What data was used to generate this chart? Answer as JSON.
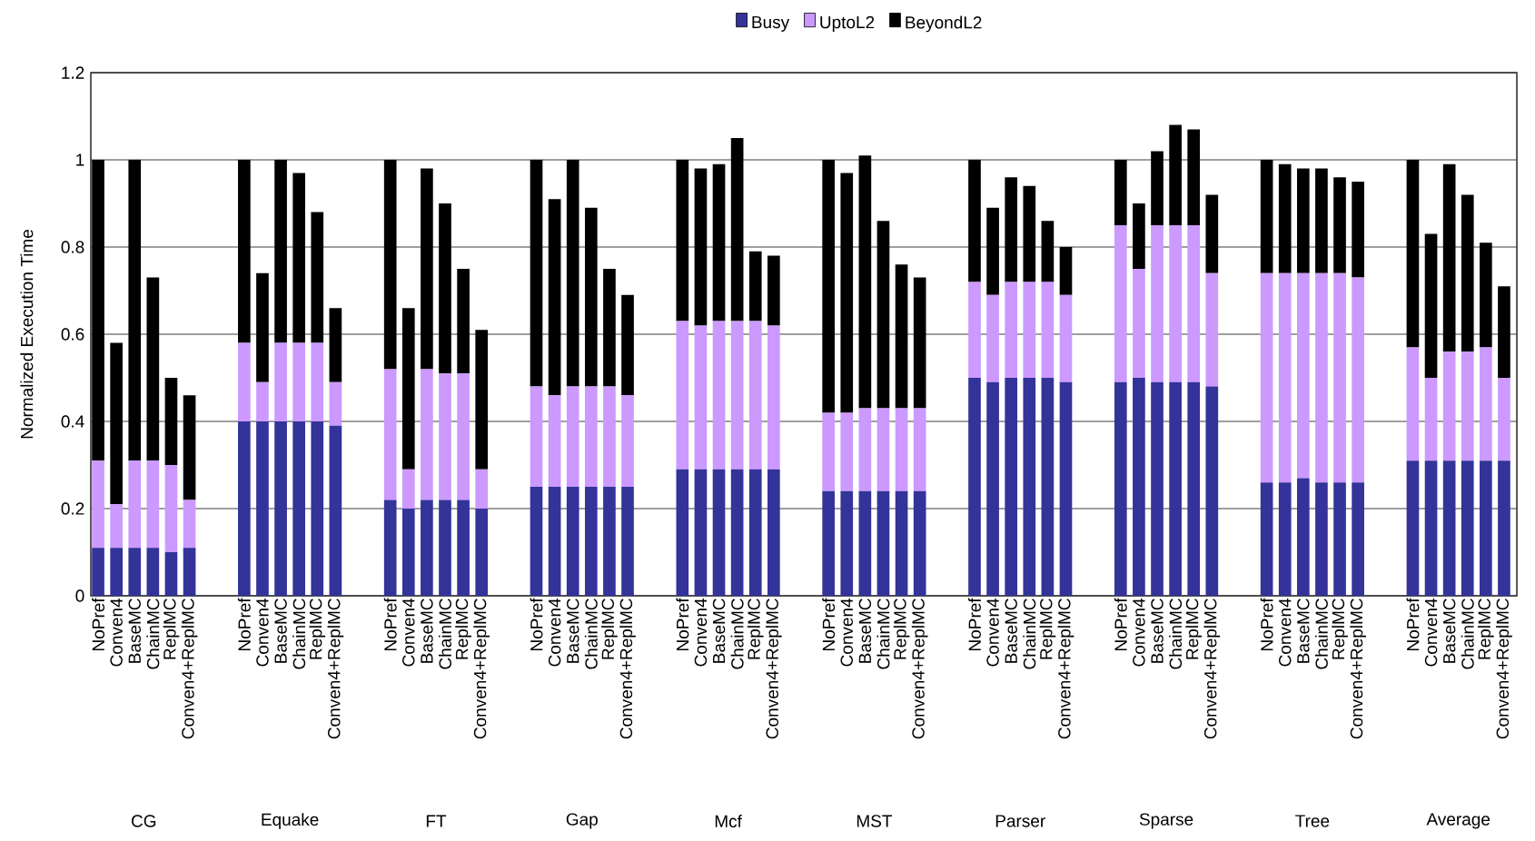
{
  "chart_data": {
    "type": "bar",
    "stacked": true,
    "ylabel": "Normalized Execution Time",
    "ylim": [
      0,
      1.2
    ],
    "yticks": [
      0,
      0.2,
      0.4,
      0.6,
      0.8,
      1,
      1.2
    ],
    "grid": "y",
    "legend": "top",
    "categories": [
      "NoPref",
      "Conven4",
      "BaseMC",
      "ChainMC",
      "ReplMC",
      "Conven4+ReplMC",
      null,
      null,
      "NoPref",
      "Conven4",
      "BaseMC",
      "ChainMC",
      "ReplMC",
      "Conven4+ReplMC",
      null,
      null,
      "NoPref",
      "Conven4",
      "BaseMC",
      "ChainMC",
      "ReplMC",
      "Conven4+ReplMC",
      null,
      null,
      "NoPref",
      "Conven4",
      "BaseMC",
      "ChainMC",
      "ReplMC",
      "Conven4+ReplMC",
      null,
      null,
      "NoPref",
      "Conven4",
      "BaseMC",
      "ChainMC",
      "ReplMC",
      "Conven4+ReplMC",
      null,
      null,
      "NoPref",
      "Conven4",
      "BaseMC",
      "ChainMC",
      "ReplMC",
      "Conven4+ReplMC",
      null,
      null,
      "NoPref",
      "Conven4",
      "BaseMC",
      "ChainMC",
      "ReplMC",
      "Conven4+ReplMC",
      null,
      null,
      "NoPref",
      "Conven4",
      "BaseMC",
      "ChainMC",
      "ReplMC",
      "Conven4+ReplMC",
      null,
      null,
      "NoPref",
      "Conven4",
      "BaseMC",
      "ChainMC",
      "ReplMC",
      "Conven4+ReplMC",
      null,
      null,
      "NoPref",
      "Conven4",
      "BaseMC",
      "ChainMC",
      "ReplMC",
      "Conven4+ReplMC"
    ],
    "series": [
      {
        "name": "Busy",
        "color": "#333399",
        "values": [
          0.11,
          0.11,
          0.11,
          0.11,
          0.1,
          0.11,
          null,
          null,
          0.4,
          0.4,
          0.4,
          0.4,
          0.4,
          0.39,
          null,
          null,
          0.22,
          0.2,
          0.22,
          0.22,
          0.22,
          0.2,
          null,
          null,
          0.25,
          0.25,
          0.25,
          0.25,
          0.25,
          0.25,
          null,
          null,
          0.29,
          0.29,
          0.29,
          0.29,
          0.29,
          0.29,
          null,
          null,
          0.24,
          0.24,
          0.24,
          0.24,
          0.24,
          0.24,
          null,
          null,
          0.5,
          0.49,
          0.5,
          0.5,
          0.5,
          0.49,
          null,
          null,
          0.49,
          0.5,
          0.49,
          0.49,
          0.49,
          0.48,
          null,
          null,
          0.26,
          0.26,
          0.27,
          0.26,
          0.26,
          0.26,
          null,
          null,
          0.31,
          0.31,
          0.31,
          0.31,
          0.31,
          0.31
        ]
      },
      {
        "name": "UptoL2",
        "color": "#cc99ff",
        "values": [
          0.2,
          0.1,
          0.2,
          0.2,
          0.2,
          0.11,
          null,
          null,
          0.18,
          0.09,
          0.18,
          0.18,
          0.18,
          0.1,
          null,
          null,
          0.3,
          0.09,
          0.3,
          0.29,
          0.29,
          0.09,
          null,
          null,
          0.23,
          0.21,
          0.23,
          0.23,
          0.23,
          0.21,
          null,
          null,
          0.34,
          0.33,
          0.34,
          0.34,
          0.34,
          0.33,
          null,
          null,
          0.18,
          0.18,
          0.19,
          0.19,
          0.19,
          0.19,
          null,
          null,
          0.22,
          0.2,
          0.22,
          0.22,
          0.22,
          0.2,
          null,
          null,
          0.36,
          0.25,
          0.36,
          0.36,
          0.36,
          0.26,
          null,
          null,
          0.48,
          0.48,
          0.47,
          0.48,
          0.48,
          0.47,
          null,
          null,
          0.26,
          0.19,
          0.25,
          0.25,
          0.26,
          0.19
        ]
      },
      {
        "name": "BeyondL2",
        "color": "#000000",
        "values": [
          0.69,
          0.37,
          0.69,
          0.42,
          0.2,
          0.24,
          null,
          null,
          0.42,
          0.25,
          0.42,
          0.39,
          0.3,
          0.17,
          null,
          null,
          0.48,
          0.37,
          0.46,
          0.39,
          0.24,
          0.32,
          null,
          null,
          0.52,
          0.45,
          0.52,
          0.41,
          0.27,
          0.23,
          null,
          null,
          0.37,
          0.36,
          0.36,
          0.42,
          0.16,
          0.16,
          null,
          null,
          0.58,
          0.55,
          0.58,
          0.43,
          0.33,
          0.3,
          null,
          null,
          0.28,
          0.2,
          0.24,
          0.22,
          0.14,
          0.11,
          null,
          null,
          0.15,
          0.15,
          0.17,
          0.23,
          0.22,
          0.18,
          null,
          null,
          0.26,
          0.25,
          0.24,
          0.24,
          0.22,
          0.22,
          null,
          null,
          0.43,
          0.33,
          0.43,
          0.36,
          0.24,
          0.21
        ]
      }
    ],
    "annotations": [
      "CG",
      "Equake",
      "FT",
      "Gap",
      "Mcf",
      "MST",
      "Parser",
      "Sparse",
      "Tree",
      "Average"
    ]
  }
}
